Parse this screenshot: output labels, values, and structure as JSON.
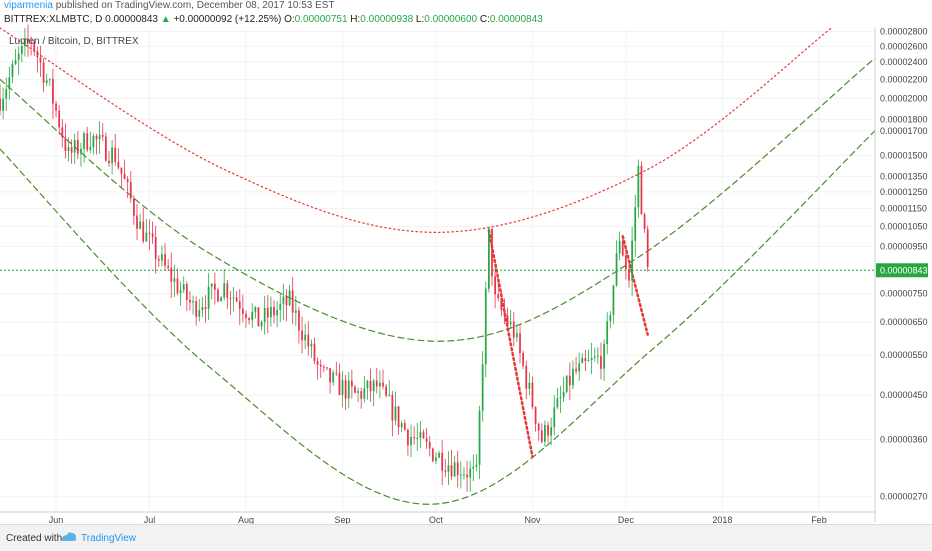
{
  "header": {
    "user": "viparmenia",
    "published_text": "published on TradingView.com, December 08, 2017 10:53 EST",
    "symbol": "BITTREX:XLMBTC, D",
    "price": "0.00000843",
    "change": "+0.00000092 (+12.25%)",
    "o_label": "O:",
    "o_value": "0.00000751",
    "h_label": "H:",
    "h_value": "0.00000938",
    "l_label": "L:",
    "l_value": "0.00000600",
    "c_label": "C:",
    "c_value": "0.00000843"
  },
  "footer": {
    "created_with": "Created with",
    "brand": "TradingView"
  },
  "colors": {
    "up": "#27a844",
    "down": "#e8344e",
    "red_curve": "#e53935",
    "green_curve": "#4c8c2b",
    "price_line": "#26a641",
    "accent": "#2196f3"
  },
  "chart_data": {
    "type": "candlestick",
    "title": "Lumen / Bitcoin, D, BITTREX",
    "x_ticks": [
      "Jun",
      "Jul",
      "Aug",
      "Sep",
      "Oct",
      "Nov",
      "Dec",
      "2018",
      "Feb"
    ],
    "y_ticks": [
      "0.00002800",
      "0.00002600",
      "0.00002400",
      "0.00002200",
      "0.00002000",
      "0.00001800",
      "0.00001700",
      "0.00001500",
      "0.00001350",
      "0.00001250",
      "0.00001150",
      "0.00001050",
      "0.00000950",
      "0.00000843",
      "0.00000750",
      "0.00000650",
      "0.00000550",
      "0.00000450",
      "0.00000360",
      "0.00000270"
    ],
    "current_price": "0.00000843",
    "y_scale": "log",
    "x_range": [
      "2017-05-14",
      "2018-02-19"
    ],
    "y_range": [
      2.5e-06,
      2.85e-05
    ],
    "price_path": [
      [
        "2017-05-14",
        2e-05
      ],
      [
        "2017-05-20",
        2.45e-05
      ],
      [
        "2017-05-24",
        2.7e-05
      ],
      [
        "2017-05-30",
        2.1e-05
      ],
      [
        "2017-06-05",
        1.5e-05
      ],
      [
        "2017-06-12",
        1.65e-05
      ],
      [
        "2017-06-20",
        1.5e-05
      ],
      [
        "2017-06-28",
        1.05e-05
      ],
      [
        "2017-07-06",
        8.5e-06
      ],
      [
        "2017-07-15",
        7e-06
      ],
      [
        "2017-07-25",
        7.8e-06
      ],
      [
        "2017-08-05",
        6.5e-06
      ],
      [
        "2017-08-15",
        7.2e-06
      ],
      [
        "2017-08-25",
        5e-06
      ],
      [
        "2017-09-05",
        4.5e-06
      ],
      [
        "2017-09-12",
        4.7e-06
      ],
      [
        "2017-09-22",
        3.7e-06
      ],
      [
        "2017-10-05",
        3.2e-06
      ],
      [
        "2017-10-14",
        3e-06
      ],
      [
        "2017-10-18",
        1e-05
      ],
      [
        "2017-10-20",
        7.2e-06
      ],
      [
        "2017-10-26",
        6.2e-06
      ],
      [
        "2017-11-04",
        3.6e-06
      ],
      [
        "2017-11-14",
        5e-06
      ],
      [
        "2017-11-24",
        5.5e-06
      ],
      [
        "2017-11-29",
        1e-05
      ],
      [
        "2017-12-02",
        8e-06
      ],
      [
        "2017-12-05",
        1.4e-05
      ],
      [
        "2017-12-08",
        8.4e-06
      ]
    ],
    "overlays": [
      {
        "style": "dotted",
        "color": "red",
        "points": [
          [
            "2017-05-14",
            2.85e-05
          ],
          [
            "2017-07-25",
            1.4e-05
          ],
          [
            "2017-10-01",
            1.02e-05
          ],
          [
            "2017-12-08",
            1.4e-05
          ],
          [
            "2018-02-05",
            2.85e-05
          ]
        ]
      },
      {
        "style": "dashed",
        "color": "green",
        "points": [
          [
            "2017-05-14",
            2.2e-05
          ],
          [
            "2017-07-20",
            9.2e-06
          ],
          [
            "2017-10-01",
            5.9e-06
          ],
          [
            "2017-12-05",
            9e-06
          ],
          [
            "2018-02-19",
            2.45e-05
          ]
        ]
      },
      {
        "style": "dashed",
        "color": "green",
        "points": [
          [
            "2017-05-14",
            1.55e-05
          ],
          [
            "2017-07-20",
            5.2e-06
          ],
          [
            "2017-09-30",
            2.6e-06
          ],
          [
            "2017-12-10",
            5.7e-06
          ],
          [
            "2018-02-19",
            1.7e-05
          ]
        ]
      },
      {
        "style": "dotted",
        "color": "red",
        "points": [
          [
            "2017-10-18",
            1.03e-05
          ],
          [
            "2017-11-01",
            3.3e-06
          ]
        ]
      },
      {
        "style": "dotted",
        "color": "red",
        "points": [
          [
            "2017-11-30",
            1e-05
          ],
          [
            "2017-12-08",
            6.1e-06
          ]
        ]
      }
    ]
  }
}
